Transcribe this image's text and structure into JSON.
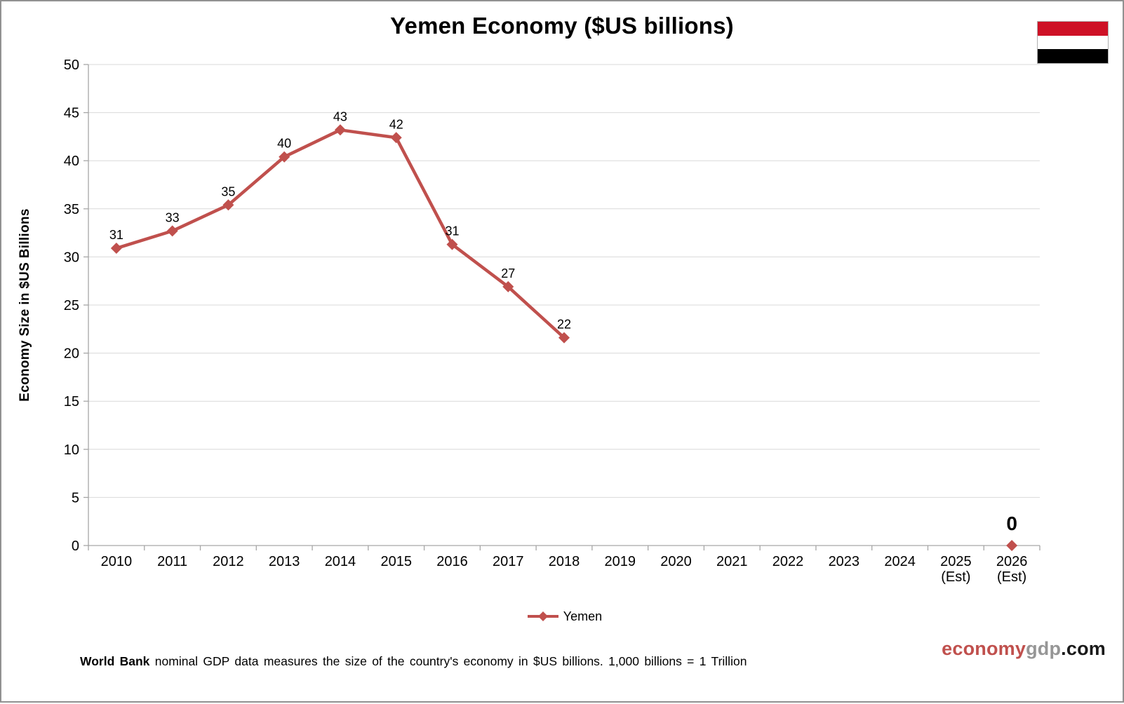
{
  "page": {
    "footer": {
      "bold": "World Bank",
      "text": " nominal GDP data measures the size of the country's economy in $US billions. 1,000 billions = 1 Trillion"
    },
    "logo": {
      "part1": "economy",
      "part2": "gdp",
      "part3": ".com",
      "color1": "#C0504D",
      "color2": "#969696",
      "color3": "#1A1A1A"
    }
  },
  "flag": {
    "country": "Yemen",
    "stripes": [
      "#CE1126",
      "#FFFFFF",
      "#000000"
    ]
  },
  "chart_data": {
    "type": "line",
    "title": "Yemen Economy ($US billions)",
    "xlabel": "",
    "ylabel": "Economy Size in $US Billions",
    "ylim": [
      0,
      50
    ],
    "ytick_step": 5,
    "grid": "horizontal",
    "gridline_color": "#D9D9D9",
    "axis_color": "#A6A6A6",
    "legend_position": "bottom",
    "categories": [
      [
        "2010"
      ],
      [
        "2011"
      ],
      [
        "2012"
      ],
      [
        "2013"
      ],
      [
        "2014"
      ],
      [
        "2015"
      ],
      [
        "2016"
      ],
      [
        "2017"
      ],
      [
        "2018"
      ],
      [
        "2019"
      ],
      [
        "2020"
      ],
      [
        "2021"
      ],
      [
        "2022"
      ],
      [
        "2023"
      ],
      [
        "2024"
      ],
      [
        "2025",
        "(Est)"
      ],
      [
        "2026",
        "(Est)"
      ]
    ],
    "series": [
      {
        "name": "Yemen",
        "color": "#C0504D",
        "marker": "diamond",
        "values": [
          30.9,
          32.7,
          35.4,
          40.4,
          43.2,
          42.4,
          31.3,
          26.9,
          21.6,
          null,
          null,
          null,
          null,
          null,
          null,
          null,
          0
        ],
        "labels": [
          "31",
          "33",
          "35",
          "40",
          "43",
          "42",
          "31",
          "27",
          "22",
          null,
          null,
          null,
          null,
          null,
          null,
          null,
          "0"
        ],
        "emphasis_label_index": 16
      }
    ]
  }
}
